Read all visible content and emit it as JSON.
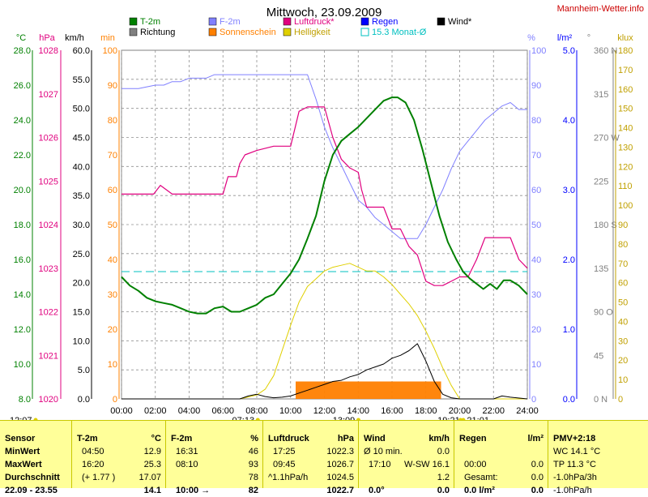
{
  "header": {
    "title": "Mittwoch, 23.09.2009",
    "site": "Mannheim-Wetter.info"
  },
  "colors": {
    "temp": "#008000",
    "humidity": "#8080ff",
    "pressure": "#e0007f",
    "sunshine": "#ff8000",
    "brightness": "#e0d000",
    "rain": "#0000ff",
    "monthavg": "#00c0c0",
    "wind": "#000000",
    "direction": "#808080"
  },
  "legend": [
    {
      "label": "T-2m",
      "color": "#008000",
      "style": "fill"
    },
    {
      "label": "Richtung",
      "color": "#808080",
      "style": "fill"
    },
    {
      "label": "F-2m",
      "color": "#8080ff",
      "style": "fill"
    },
    {
      "label": "Sonnenschein",
      "color": "#ff8000",
      "style": "fill"
    },
    {
      "label": "Luftdruck*",
      "color": "#e0007f",
      "style": "fill"
    },
    {
      "label": "Helligkeit",
      "color": "#e0d000",
      "style": "fill"
    },
    {
      "label": "Regen",
      "color": "#0000ff",
      "style": "fill"
    },
    {
      "label": "15.3 Monat-Ø",
      "color": "#00c0c0",
      "style": "outline"
    },
    {
      "label": "Wind*",
      "color": "#000000",
      "style": "fill"
    }
  ],
  "axis_units": {
    "temp": "°C",
    "pressure": "hPa",
    "wind": "km/h",
    "sunshine": "min",
    "humidity": "%",
    "rain": "l/m²",
    "direction": "°",
    "brightness": "klux"
  },
  "chart_data": {
    "type": "line",
    "title": "Mittwoch, 23.09.2009",
    "xticks": [
      "00:00",
      "02:00",
      "04:00",
      "06:00",
      "08:00",
      "10:00",
      "12:00",
      "14:00",
      "16:00",
      "18:00",
      "20:00",
      "22:00",
      "24:00"
    ],
    "scales": {
      "temp": {
        "min": 8,
        "max": 28,
        "ticks": [
          "8.0",
          "10.0",
          "12.0",
          "14.0",
          "16.0",
          "18.0",
          "20.0",
          "22.0",
          "24.0",
          "26.0",
          "28.0"
        ]
      },
      "pressure": {
        "min": 1020,
        "max": 1028,
        "ticks": [
          "1020",
          "1021",
          "1022",
          "1023",
          "1024",
          "1025",
          "1026",
          "1027",
          "1028"
        ]
      },
      "wind": {
        "min": 0,
        "max": 60,
        "ticks": [
          "0.0",
          "5.0",
          "10.0",
          "15.0",
          "20.0",
          "25.0",
          "30.0",
          "35.0",
          "40.0",
          "45.0",
          "50.0",
          "55.0",
          "60.0"
        ]
      },
      "sunshine": {
        "min": 0,
        "max": 100,
        "ticks": [
          "0",
          "10",
          "20",
          "30",
          "40",
          "50",
          "60",
          "70",
          "80",
          "90",
          "100"
        ]
      },
      "humidity": {
        "min": 0,
        "max": 100,
        "ticks": [
          "0",
          "10",
          "20",
          "30",
          "40",
          "50",
          "60",
          "70",
          "80",
          "90",
          "100"
        ]
      },
      "rain": {
        "min": 0,
        "max": 5,
        "ticks": [
          "0.0",
          "1.0",
          "2.0",
          "3.0",
          "4.0",
          "5.0"
        ]
      },
      "direction": {
        "min": 0,
        "max": 360,
        "ticks": [
          "0 N",
          "45",
          "90 O",
          "135",
          "180 S",
          "225",
          "270 W",
          "315",
          "360 N"
        ]
      },
      "brightness": {
        "min": 0,
        "max": 180,
        "ticks": [
          "0",
          "10",
          "20",
          "30",
          "40",
          "50",
          "60",
          "70",
          "80",
          "90",
          "100",
          "110",
          "120",
          "130",
          "140",
          "150",
          "160",
          "170",
          "180"
        ]
      }
    },
    "series": [
      {
        "name": "T-2m",
        "scale": "temp",
        "x": [
          0,
          0.5,
          1,
          1.5,
          2,
          2.5,
          3,
          3.5,
          4,
          4.5,
          5,
          5.5,
          6,
          6.5,
          7,
          7.5,
          8,
          8.5,
          9,
          9.5,
          10,
          10.5,
          11,
          11.5,
          12,
          12.5,
          13,
          13.5,
          14,
          14.5,
          15,
          15.5,
          16,
          16.33,
          16.8,
          17.3,
          17.8,
          18.3,
          18.8,
          19.3,
          19.8,
          20.2,
          20.6,
          21,
          21.4,
          21.8,
          22.2,
          22.6,
          23,
          23.5,
          24
        ],
        "y": [
          15.0,
          14.5,
          14.2,
          13.8,
          13.6,
          13.5,
          13.4,
          13.2,
          13.0,
          12.9,
          12.9,
          13.2,
          13.3,
          13.0,
          13.0,
          13.2,
          13.4,
          13.8,
          14.0,
          14.6,
          15.2,
          16.0,
          17.2,
          18.5,
          20.5,
          22.0,
          22.8,
          23.2,
          23.6,
          24.1,
          24.6,
          25.1,
          25.3,
          25.3,
          25.0,
          24.0,
          22.3,
          20.4,
          18.5,
          17.0,
          16.0,
          15.3,
          14.9,
          14.6,
          14.3,
          14.6,
          14.3,
          14.8,
          14.8,
          14.5,
          14.0
        ]
      },
      {
        "name": "F-2m",
        "scale": "humidity",
        "x": [
          0,
          1,
          2,
          2.5,
          3,
          3.5,
          4,
          5,
          5.5,
          6,
          7,
          8,
          9,
          10,
          10.5,
          11,
          11.5,
          12,
          12.5,
          13,
          13.5,
          14,
          14.5,
          15,
          15.5,
          16,
          16.5,
          17,
          17.5,
          18,
          18.5,
          19,
          19.5,
          20,
          20.5,
          21,
          21.5,
          22,
          22.5,
          23,
          23.5,
          24
        ],
        "y": [
          89,
          89,
          90,
          90,
          91,
          91,
          92,
          92,
          93,
          93,
          93,
          93,
          93,
          93,
          93,
          93,
          86,
          78,
          72,
          67,
          62,
          57,
          55,
          52,
          50,
          48,
          46,
          46,
          46,
          50,
          55,
          60,
          66,
          71,
          74,
          77,
          80,
          82,
          84,
          85,
          83,
          83
        ]
      },
      {
        "name": "Luftdruck*",
        "scale": "pressure",
        "x": [
          0,
          1,
          1.9,
          2.3,
          3,
          4,
          5,
          6,
          6.3,
          6.8,
          7,
          7.3,
          8,
          9,
          10,
          10.5,
          11,
          11.5,
          12,
          12.5,
          13,
          13.5,
          14,
          14.2,
          14.5,
          15,
          15.5,
          16,
          16.5,
          17,
          17.5,
          18,
          18.5,
          19,
          19.5,
          20,
          20.5,
          21,
          21.5,
          22,
          22.5,
          23,
          23.5,
          24
        ],
        "y": [
          1024.7,
          1024.7,
          1024.7,
          1024.9,
          1024.7,
          1024.7,
          1024.7,
          1024.7,
          1025.1,
          1025.1,
          1025.4,
          1025.6,
          1025.7,
          1025.8,
          1025.8,
          1026.6,
          1026.7,
          1026.7,
          1026.7,
          1026.0,
          1025.5,
          1025.3,
          1025.2,
          1024.8,
          1024.4,
          1024.4,
          1024.4,
          1023.9,
          1023.9,
          1023.5,
          1023.3,
          1022.7,
          1022.6,
          1022.6,
          1022.7,
          1022.8,
          1022.8,
          1023.2,
          1023.7,
          1023.7,
          1023.7,
          1023.7,
          1023.2,
          1023.0
        ]
      },
      {
        "name": "Helligkeit",
        "scale": "brightness",
        "x": [
          0,
          6.5,
          7,
          7.5,
          8,
          8.5,
          9,
          9.5,
          10,
          10.5,
          11,
          11.5,
          12,
          12.5,
          13,
          13.5,
          14,
          14.5,
          15,
          15.5,
          16,
          16.5,
          17,
          17.5,
          18,
          18.5,
          19,
          19.5,
          20,
          24
        ],
        "y": [
          0,
          0,
          0,
          1,
          2,
          5,
          12,
          25,
          38,
          50,
          58,
          62,
          66,
          68,
          69,
          70,
          68,
          66,
          66,
          63,
          59,
          54,
          49,
          43,
          35,
          26,
          16,
          7,
          0,
          0
        ]
      },
      {
        "name": "Wind*",
        "scale": "wind",
        "x": [
          0,
          7,
          7.5,
          8,
          8.5,
          9,
          9.5,
          10,
          10.5,
          11,
          11.5,
          12,
          12.5,
          13,
          13.5,
          14,
          14.5,
          15,
          15.5,
          16,
          16.5,
          17,
          17.5,
          18,
          18.5,
          19,
          19.5,
          20,
          22,
          22.5,
          23,
          24
        ],
        "y": [
          0,
          0,
          0.5,
          0.8,
          0.4,
          0.2,
          0.3,
          0.5,
          1.0,
          1.5,
          2.0,
          2.5,
          3.0,
          3.2,
          3.8,
          4.2,
          5.0,
          5.5,
          6.0,
          7.0,
          7.5,
          8.3,
          9.5,
          6.5,
          3.0,
          0.8,
          0.2,
          0,
          0,
          0.5,
          0.3,
          0
        ]
      },
      {
        "name": "Sonnenschein",
        "scale": "sunshine",
        "type": "area",
        "x": [
          10.3,
          18.9
        ],
        "y": [
          5,
          5
        ]
      },
      {
        "name": "15.3 Monat-Ø",
        "scale": "temp",
        "type": "hline",
        "y": 15.3
      }
    ],
    "below_axis_labels": [
      {
        "text": "12:07",
        "x": 0
      },
      {
        "text": "07:13",
        "x": 7.2
      },
      {
        "text": "13:09",
        "x": 13.15
      },
      {
        "text": "19:21",
        "x": 19.35
      },
      {
        "text": "-21:01",
        "x": 21.0
      }
    ]
  },
  "table": {
    "sensor": {
      "title": "Sensor",
      "rows": [
        "MinWert",
        "MaxWert",
        "Durchschnitt",
        "22.09 - 23.55"
      ]
    },
    "temp": {
      "title": "T-2m",
      "unit": "°C",
      "rows": [
        [
          "04:50",
          "12.9"
        ],
        [
          "16:20",
          "25.3"
        ],
        [
          "(+ 1.77 )",
          "17.07"
        ],
        [
          "",
          "14.1"
        ]
      ]
    },
    "humid": {
      "title": "F-2m",
      "unit": "%",
      "rows": [
        [
          "16:31",
          "46"
        ],
        [
          "08:10",
          "93"
        ],
        [
          "",
          "78"
        ],
        [
          "10:00 →",
          "82"
        ]
      ]
    },
    "press": {
      "title": "Luftdruck",
      "unit": "hPa",
      "rows": [
        [
          "17:25",
          "1022.3"
        ],
        [
          "09:45",
          "1026.7"
        ],
        [
          "^1.1hPa/h",
          "1024.5"
        ],
        [
          "",
          "1022.7"
        ]
      ]
    },
    "wind": {
      "title": "Wind",
      "unit": "km/h",
      "rows": [
        [
          "Ø 10 min.",
          "0.0"
        ],
        [
          "17:10",
          "W-SW 16.1"
        ],
        [
          "",
          "1.2"
        ],
        [
          "0.0°",
          "0.0"
        ]
      ]
    },
    "rain": {
      "title": "Regen",
      "unit": "l/m²",
      "rows": [
        [
          "",
          "",
          ""
        ],
        [
          "00:00",
          "0.0"
        ],
        [
          "Gesamt:",
          "0.0"
        ],
        [
          "0.0 l/m²",
          "0.0"
        ]
      ]
    },
    "pmv": {
      "title": "PMV+2:18",
      "rows": [
        "WC 14.1 °C",
        "TP 11.3 °C",
        "-1.0hPa/3h",
        "-1.0hPa/h"
      ]
    }
  }
}
